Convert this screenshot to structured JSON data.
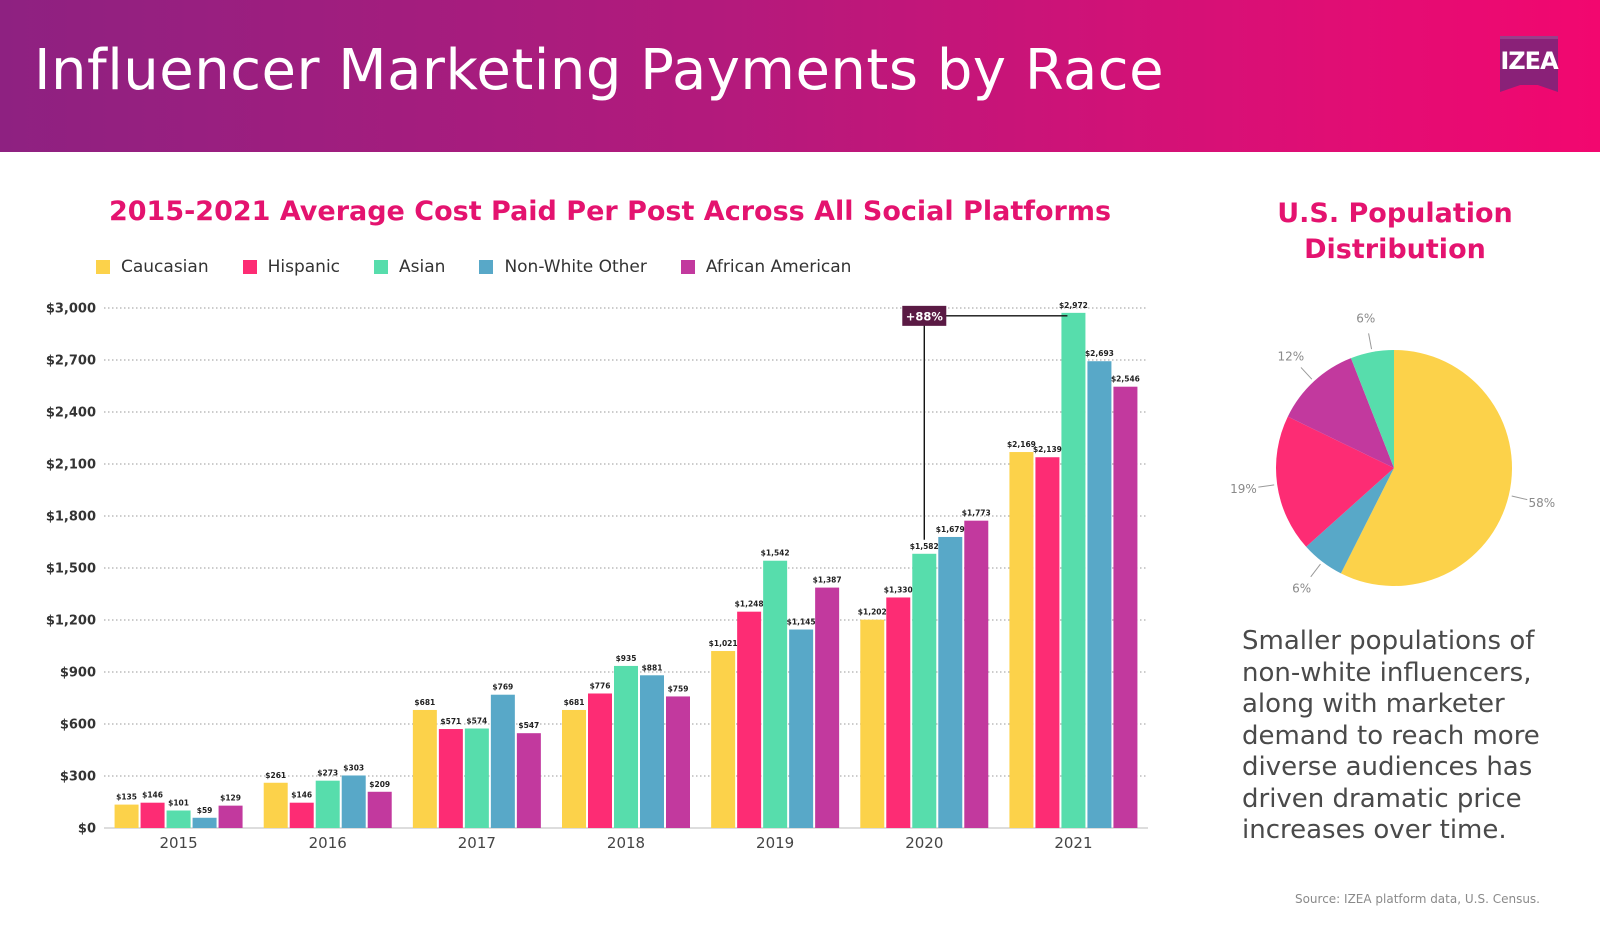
{
  "header": {
    "title": "Influencer Marketing Payments by Race",
    "logo_text": "IZEA"
  },
  "colors": {
    "Caucasian": "#fcd24a",
    "Hispanic": "#fd2c74",
    "Asian": "#57ddac",
    "Non-White Other": "#58a8c8",
    "African American": "#c2399e",
    "accent": "#e4136f",
    "callout": "#5a1a44"
  },
  "chart_data": [
    {
      "type": "bar",
      "title": "2015-2021 Average Cost Paid Per Post Across All Social Platforms",
      "categories": [
        "2015",
        "2016",
        "2017",
        "2018",
        "2019",
        "2020",
        "2021"
      ],
      "series": [
        {
          "name": "Caucasian",
          "values": [
            135,
            261,
            681,
            681,
            1021,
            1202,
            2169
          ]
        },
        {
          "name": "Hispanic",
          "values": [
            146,
            146,
            571,
            776,
            1248,
            1330,
            2139
          ]
        },
        {
          "name": "Asian",
          "values": [
            101,
            273,
            574,
            935,
            1542,
            1582,
            2972
          ]
        },
        {
          "name": "Non-White Other",
          "values": [
            59,
            303,
            769,
            881,
            1145,
            1679,
            2693
          ]
        },
        {
          "name": "African American",
          "values": [
            129,
            209,
            547,
            759,
            1387,
            1773,
            2546
          ]
        }
      ],
      "data_labels": [
        [
          "$135",
          "$261",
          "$681",
          "$681",
          "$1,021",
          "$1,202",
          "$2,169"
        ],
        [
          "$146",
          "$146",
          "$571",
          "$776",
          "$1,248",
          "$1,330",
          "$2,139"
        ],
        [
          "$101",
          "$273",
          "$574",
          "$935",
          "$1,542",
          "$1,582",
          "$2,972"
        ],
        [
          "$59",
          "$303",
          "$769",
          "$881",
          "$1,145",
          "$1,679",
          "$2,693"
        ],
        [
          "$129",
          "$209",
          "$547",
          "$759",
          "$1,387",
          "$1,773",
          "$2,546"
        ]
      ],
      "yticks": [
        0,
        300,
        600,
        900,
        1200,
        1500,
        1800,
        2100,
        2400,
        2700,
        3000
      ],
      "ytick_labels": [
        "$0",
        "$300",
        "$600",
        "$900",
        "$1,200",
        "$1,500",
        "$1,800",
        "$2,100",
        "$2,400",
        "$2,700",
        "$3,000"
      ],
      "ylim": [
        0,
        3000
      ],
      "legend_position": "top-left",
      "grid": "horizontal dotted",
      "annotation": {
        "text": "+88%",
        "from_series": "Asian",
        "from_category": "2020",
        "to_series": "Asian",
        "to_category": "2021"
      }
    },
    {
      "type": "pie",
      "title": "U.S. Population Distribution",
      "values": [
        58,
        6,
        19,
        12,
        6
      ],
      "labels": [
        "58%",
        "6%",
        "19%",
        "12%",
        "6%"
      ],
      "slice_series": [
        "Caucasian",
        "Non-White Other",
        "Hispanic",
        "African American",
        "Asian"
      ]
    }
  ],
  "summary": "Smaller populations of non-white influencers, along with marketer demand to reach more diverse audiences has driven dramatic price increases over time.",
  "source": "Source: IZEA platform data, U.S. Census."
}
